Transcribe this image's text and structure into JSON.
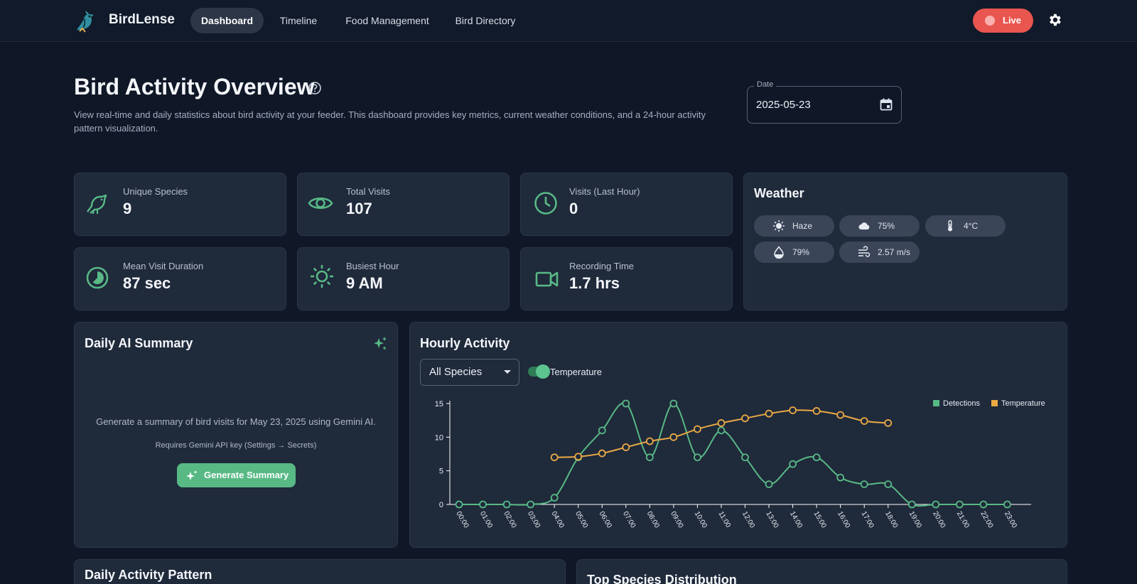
{
  "app": {
    "name": "BirdLense"
  },
  "nav": {
    "items": [
      {
        "label": "Dashboard",
        "active": true
      },
      {
        "label": "Timeline"
      },
      {
        "label": "Food Management"
      },
      {
        "label": "Bird Directory"
      }
    ]
  },
  "header": {
    "live_label": "Live"
  },
  "page": {
    "title": "Bird Activity Overview",
    "description": "View real-time and daily statistics about bird activity at your feeder. This dashboard provides key metrics, current weather conditions, and a 24-hour activity pattern visualization.",
    "date_label": "Date",
    "date_value": "2025-05-23"
  },
  "stats": [
    {
      "label": "Unique Species",
      "value": "9",
      "icon": "bird-icon"
    },
    {
      "label": "Total Visits",
      "value": "107",
      "icon": "eye-icon"
    },
    {
      "label": "Visits (Last Hour)",
      "value": "0",
      "icon": "clock-icon"
    },
    {
      "label": "Mean Visit Duration",
      "value": "87 sec",
      "icon": "timelapse-icon"
    },
    {
      "label": "Busiest Hour",
      "value": "9 AM",
      "icon": "sun-icon"
    },
    {
      "label": "Recording Time",
      "value": "1.7 hrs",
      "icon": "video-camera-icon"
    }
  ],
  "weather": {
    "title": "Weather",
    "chips": [
      {
        "icon": "sun-icon",
        "value": "Haze"
      },
      {
        "icon": "cloud-icon",
        "value": "75%"
      },
      {
        "icon": "thermometer-icon",
        "value": "4°C"
      },
      {
        "icon": "humidity-drop-icon",
        "value": "79%"
      },
      {
        "icon": "wind-icon",
        "value": "2.57 m/s"
      }
    ]
  },
  "ai_summary": {
    "title": "Daily AI Summary",
    "text": "Generate a summary of bird visits for May 23, 2025 using Gemini AI.",
    "note": "Requires Gemini API key (Settings → Secrets)",
    "button_label": "Generate Summary"
  },
  "hourly": {
    "title": "Hourly Activity",
    "species_filter": "All Species",
    "temperature_toggle_label": "Temperature",
    "temperature_enabled": true
  },
  "lower_panels": {
    "left_title": "Daily Activity Pattern",
    "right_title": "Top Species Distribution"
  },
  "colors": {
    "accent": "#58b985",
    "temperature": "#eaa944",
    "live": "#e9564f",
    "background": "#101828",
    "card": "#1f2a3b"
  },
  "chart_data": {
    "type": "line",
    "categories": [
      "00:00",
      "01:00",
      "02:00",
      "03:00",
      "04:00",
      "05:00",
      "06:00",
      "07:00",
      "08:00",
      "09:00",
      "10:00",
      "11:00",
      "12:00",
      "13:00",
      "14:00",
      "15:00",
      "16:00",
      "17:00",
      "18:00",
      "19:00",
      "20:00",
      "21:00",
      "22:00",
      "23:00"
    ],
    "series": [
      {
        "name": "Detections",
        "color": "#58b985",
        "values": [
          0,
          0,
          0,
          0,
          1,
          7,
          11,
          15,
          7,
          15,
          7,
          11,
          7,
          3,
          6,
          7,
          4,
          3,
          3,
          0,
          0,
          0,
          0,
          0
        ]
      },
      {
        "name": "Temperature",
        "color": "#eaa944",
        "values": [
          null,
          null,
          null,
          null,
          7,
          7.1,
          7.6,
          8.5,
          9.4,
          10,
          11.2,
          12.1,
          12.8,
          13.5,
          14,
          13.9,
          13.3,
          12.4,
          12.1,
          null,
          null,
          null,
          null,
          null
        ]
      }
    ],
    "yticks": [
      "0",
      "5",
      "10",
      "15"
    ],
    "ylim": [
      0,
      15
    ],
    "legend": "top-right",
    "grid": false
  }
}
